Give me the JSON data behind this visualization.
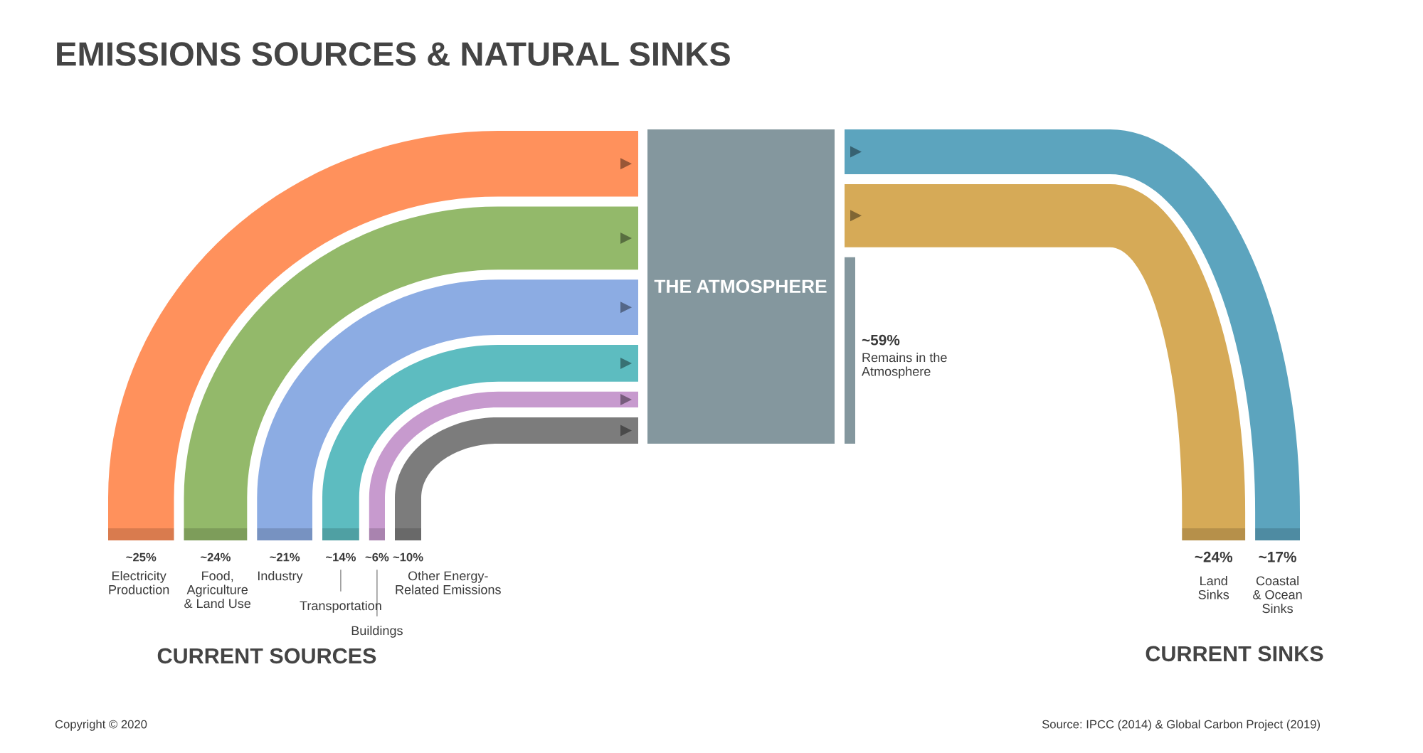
{
  "chart_data": {
    "type": "other",
    "title": "EMISSIONS SOURCES & NATURAL SINKS",
    "categories": [
      "Electricity\nProduction",
      "Food,\nAgriculture\n& Land Use",
      "Industry",
      "Transportation",
      "Buildings",
      "Other Energy-\nRelated Emissions",
      "Land\nSinks",
      "Coastal\n& Ocean\nSinks",
      "Remains in the\nAtmosphere"
    ],
    "series": [
      {
        "name": "CURRENT SOURCES",
        "values": [
          25,
          24,
          21,
          14,
          6,
          10,
          null,
          null,
          null
        ],
        "value_labels": [
          "~25%",
          "~24%",
          "~21%",
          "~14%",
          "~6%",
          "~10%",
          null,
          null,
          null
        ],
        "colors": [
          "#ff915c",
          "#93b96a",
          "#8cace3",
          "#5dbcc0",
          "#c79ace",
          "#7c7c7c",
          null,
          null,
          null
        ]
      },
      {
        "name": "CURRENT SINKS",
        "values": [
          null,
          null,
          null,
          null,
          null,
          null,
          24,
          17,
          null
        ],
        "value_labels": [
          null,
          null,
          null,
          null,
          null,
          null,
          "~24%",
          "~17%",
          null
        ],
        "colors": [
          null,
          null,
          null,
          null,
          null,
          null,
          "#d6aa57",
          "#5ca4be",
          null
        ]
      },
      {
        "values": [
          null,
          null,
          null,
          null,
          null,
          null,
          null,
          null,
          59
        ],
        "value_labels": [
          null,
          null,
          null,
          null,
          null,
          null,
          null,
          null,
          "~59%"
        ],
        "colors": [
          null,
          null,
          null,
          null,
          null,
          null,
          null,
          null,
          "#84979e"
        ]
      }
    ],
    "annotations": [
      "THE ATMOSPHERE",
      "Source: IPCC (2014) & Global Carbon Project (2019)",
      "Copyright © 2020"
    ]
  }
}
